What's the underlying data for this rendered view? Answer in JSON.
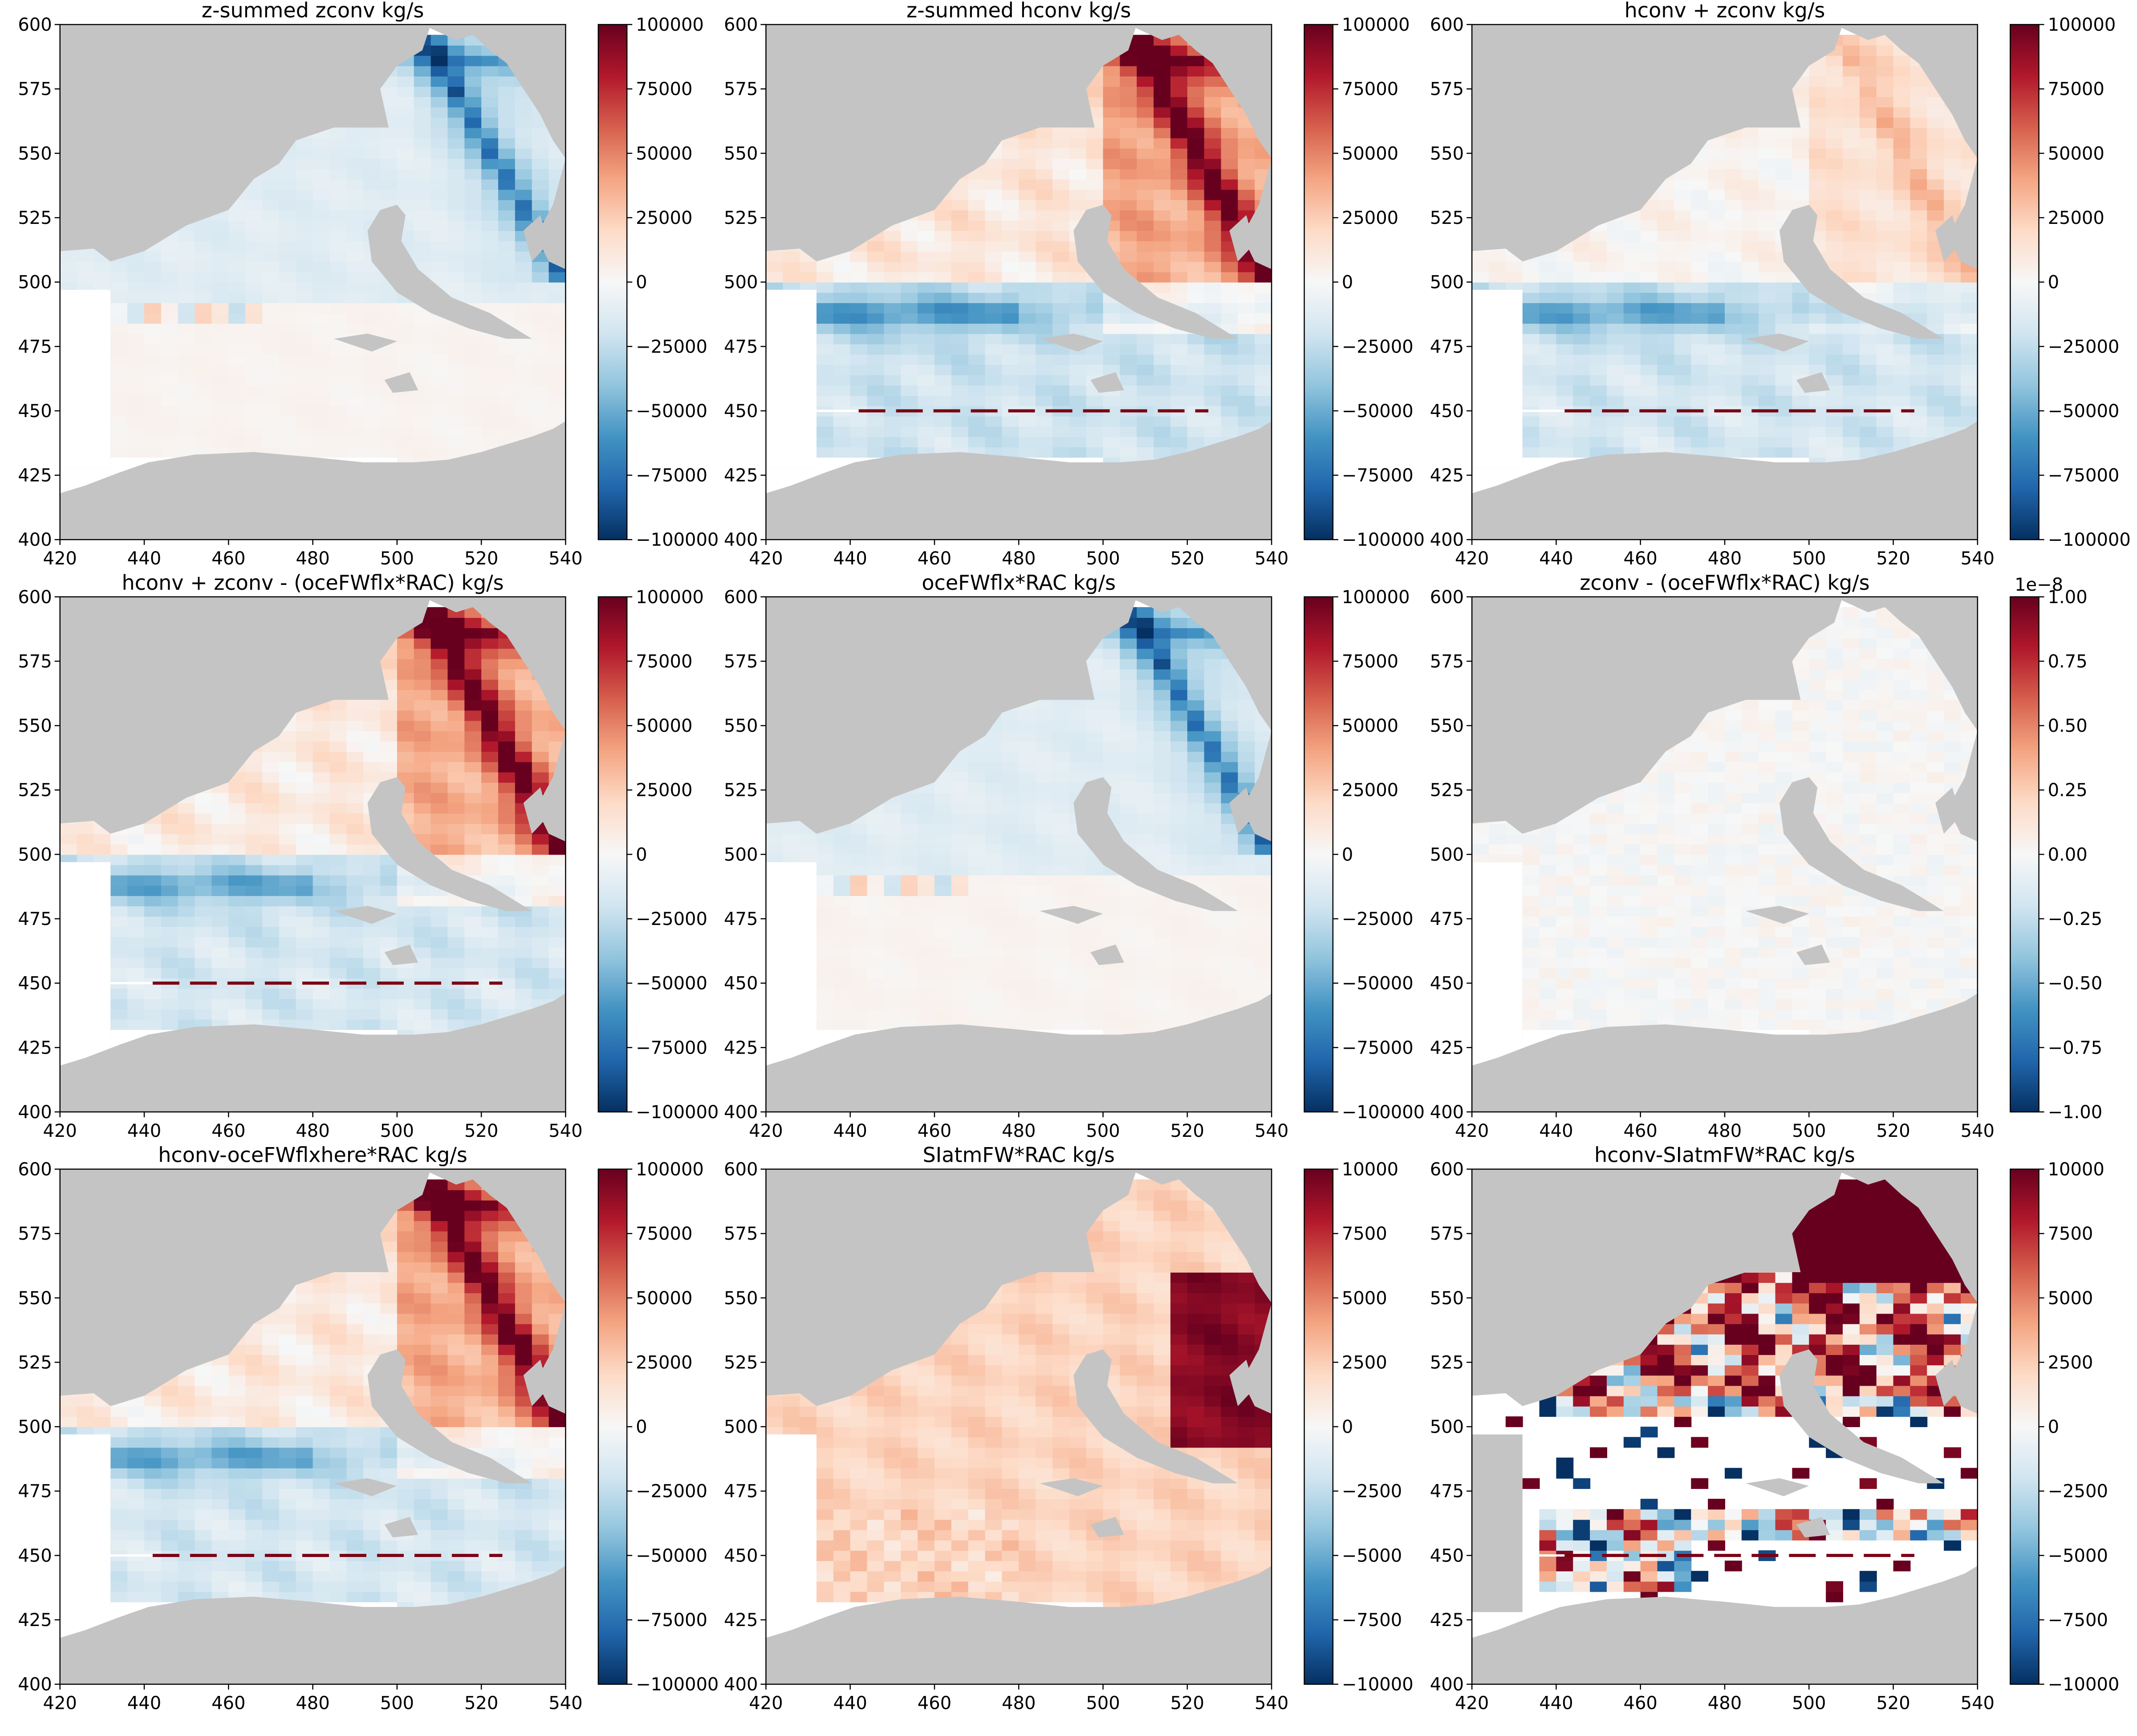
{
  "chart_data": [
    {
      "type": "heatmap",
      "title": "z-summed zconv kg/s",
      "xlim": [
        420,
        540
      ],
      "ylim": [
        400,
        600
      ],
      "xticks": [
        420,
        440,
        460,
        480,
        500,
        520,
        540
      ],
      "yticks": [
        400,
        425,
        450,
        475,
        500,
        525,
        550,
        575,
        600
      ],
      "colorbar": {
        "colormap": "RdBu_r",
        "min": -100000,
        "max": 100000,
        "ticks": [
          100000,
          75000,
          50000,
          25000,
          0,
          -25000,
          -50000,
          -75000,
          -100000
        ],
        "tick_labels": [
          "100000",
          "75000",
          "50000",
          "25000",
          "0",
          "−25000",
          "−50000",
          "−75000",
          "−100000"
        ]
      },
      "pattern": "zconv",
      "description_values": "north region slightly negative (light blue), strong negative along NE coastline, south region near zero"
    },
    {
      "type": "heatmap",
      "title": "z-summed hconv kg/s",
      "xlim": [
        420,
        540
      ],
      "ylim": [
        400,
        600
      ],
      "xticks": [
        420,
        440,
        460,
        480,
        500,
        520,
        540
      ],
      "yticks": [
        400,
        425,
        450,
        475,
        500,
        525,
        550,
        575,
        600
      ],
      "colorbar": {
        "colormap": "RdBu_r",
        "min": -100000,
        "max": 100000,
        "ticks": [
          100000,
          75000,
          50000,
          25000,
          0,
          -25000,
          -50000,
          -75000,
          -100000
        ],
        "tick_labels": [
          "100000",
          "75000",
          "50000",
          "25000",
          "0",
          "−25000",
          "−50000",
          "−75000",
          "−100000"
        ]
      },
      "pattern": "hconv",
      "description_values": "positive (red) in NE, strong positive at NE coast, negative band near 490, dashed section line at y=450"
    },
    {
      "type": "heatmap",
      "title": "hconv + zconv kg/s",
      "xlim": [
        420,
        540
      ],
      "ylim": [
        400,
        600
      ],
      "xticks": [
        420,
        440,
        460,
        480,
        500,
        520,
        540
      ],
      "yticks": [
        400,
        425,
        450,
        475,
        500,
        525,
        550,
        575,
        600
      ],
      "colorbar": {
        "colormap": "RdBu_r",
        "min": -100000,
        "max": 100000,
        "ticks": [
          100000,
          75000,
          50000,
          25000,
          0,
          -25000,
          -50000,
          -75000,
          -100000
        ],
        "tick_labels": [
          "100000",
          "75000",
          "50000",
          "25000",
          "0",
          "−25000",
          "−50000",
          "−75000",
          "−100000"
        ]
      },
      "pattern": "sum"
    },
    {
      "type": "heatmap",
      "title": "hconv + zconv - (oceFWflx*RAC) kg/s",
      "xlim": [
        420,
        540
      ],
      "ylim": [
        400,
        600
      ],
      "xticks": [
        420,
        440,
        460,
        480,
        500,
        520,
        540
      ],
      "yticks": [
        400,
        425,
        450,
        475,
        500,
        525,
        550,
        575,
        600
      ],
      "colorbar": {
        "colormap": "RdBu_r",
        "min": -100000,
        "max": 100000,
        "ticks": [
          100000,
          75000,
          50000,
          25000,
          0,
          -25000,
          -50000,
          -75000,
          -100000
        ],
        "tick_labels": [
          "100000",
          "75000",
          "50000",
          "25000",
          "0",
          "−25000",
          "−50000",
          "−75000",
          "−100000"
        ]
      },
      "pattern": "hconvlike"
    },
    {
      "type": "heatmap",
      "title": "oceFWflx*RAC kg/s",
      "xlim": [
        420,
        540
      ],
      "ylim": [
        400,
        600
      ],
      "xticks": [
        420,
        440,
        460,
        480,
        500,
        520,
        540
      ],
      "yticks": [
        400,
        425,
        450,
        475,
        500,
        525,
        550,
        575,
        600
      ],
      "colorbar": {
        "colormap": "RdBu_r",
        "min": -100000,
        "max": 100000,
        "ticks": [
          100000,
          75000,
          50000,
          25000,
          0,
          -25000,
          -50000,
          -75000,
          -100000
        ],
        "tick_labels": [
          "100000",
          "75000",
          "50000",
          "25000",
          "0",
          "−25000",
          "−50000",
          "−75000",
          "−100000"
        ]
      },
      "pattern": "zconv"
    },
    {
      "type": "heatmap",
      "title": "zconv - (oceFWflx*RAC) kg/s",
      "xlim": [
        420,
        540
      ],
      "ylim": [
        400,
        600
      ],
      "xticks": [
        420,
        440,
        460,
        480,
        500,
        520,
        540
      ],
      "yticks": [
        400,
        425,
        450,
        475,
        500,
        525,
        550,
        575,
        600
      ],
      "colorbar": {
        "colormap": "RdBu_r",
        "min": -1,
        "max": 1,
        "offset_label": "1e−8",
        "ticks": [
          1,
          0.75,
          0.5,
          0.25,
          0,
          -0.25,
          -0.5,
          -0.75,
          -1
        ],
        "tick_labels": [
          "1.00",
          "0.75",
          "0.50",
          "0.25",
          "0.00",
          "−0.25",
          "−0.50",
          "−0.75",
          "−1.00"
        ]
      },
      "pattern": "noise"
    },
    {
      "type": "heatmap",
      "title": "hconv-oceFWflxhere*RAC kg/s",
      "xlim": [
        420,
        540
      ],
      "ylim": [
        400,
        600
      ],
      "xticks": [
        420,
        440,
        460,
        480,
        500,
        520,
        540
      ],
      "yticks": [
        400,
        425,
        450,
        475,
        500,
        525,
        550,
        575,
        600
      ],
      "colorbar": {
        "colormap": "RdBu_r",
        "min": -100000,
        "max": 100000,
        "ticks": [
          100000,
          75000,
          50000,
          25000,
          0,
          -25000,
          -50000,
          -75000,
          -100000
        ],
        "tick_labels": [
          "100000",
          "75000",
          "50000",
          "25000",
          "0",
          "−25000",
          "−50000",
          "−75000",
          "−100000"
        ]
      },
      "pattern": "hconvlike"
    },
    {
      "type": "heatmap",
      "title": "SIatmFW*RAC kg/s",
      "xlim": [
        420,
        540
      ],
      "ylim": [
        400,
        600
      ],
      "xticks": [
        420,
        440,
        460,
        480,
        500,
        520,
        540
      ],
      "yticks": [
        400,
        425,
        450,
        475,
        500,
        525,
        550,
        575,
        600
      ],
      "colorbar": {
        "colormap": "RdBu_r",
        "min": -10000,
        "max": 10000,
        "ticks": [
          10000,
          7500,
          5000,
          2500,
          0,
          -2500,
          -5000,
          -7500,
          -10000
        ],
        "tick_labels": [
          "10000",
          "7500",
          "5000",
          "2500",
          "0",
          "−2500",
          "−5000",
          "−7500",
          "−10000"
        ]
      },
      "pattern": "siatm"
    },
    {
      "type": "heatmap",
      "title": "hconv-SIatmFW*RAC kg/s",
      "xlim": [
        420,
        540
      ],
      "ylim": [
        400,
        600
      ],
      "xticks": [
        420,
        440,
        460,
        480,
        500,
        520,
        540
      ],
      "yticks": [
        400,
        425,
        450,
        475,
        500,
        525,
        550,
        575,
        600
      ],
      "colorbar": {
        "colormap": "RdBu_r",
        "min": -10000,
        "max": 10000,
        "ticks": [
          10000,
          7500,
          5000,
          2500,
          0,
          -2500,
          -5000,
          -7500,
          -10000
        ],
        "tick_labels": [
          "10000",
          "7500",
          "5000",
          "2500",
          "0",
          "−2500",
          "−5000",
          "−7500",
          "−10000"
        ]
      },
      "pattern": "diff"
    }
  ]
}
